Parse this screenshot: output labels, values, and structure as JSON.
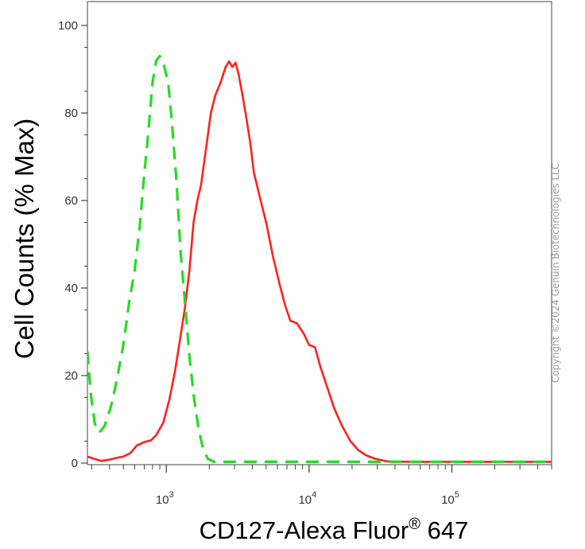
{
  "chart_data": {
    "type": "line",
    "xlabel_main": "CD127-Alexa Fluor",
    "xlabel_sup": "®",
    "xlabel_tail": " 647",
    "ylabel": "Cell Counts (% Max)",
    "x_scale": "log",
    "xlim": [
      280,
      500000
    ],
    "ylim": [
      0,
      100
    ],
    "y_ticks": [
      0,
      20,
      40,
      60,
      80,
      100
    ],
    "x_ticks": [
      {
        "value": 1000,
        "base": "10",
        "exp": "3"
      },
      {
        "value": 10000,
        "base": "10",
        "exp": "4"
      },
      {
        "value": 100000,
        "base": "10",
        "exp": "5"
      }
    ],
    "grid": false,
    "legend": "none",
    "series": [
      {
        "color": "#ff2020",
        "style": "solid",
        "points": [
          [
            280,
            1.5
          ],
          [
            310,
            1.0
          ],
          [
            350,
            0.5
          ],
          [
            400,
            0.8
          ],
          [
            450,
            1.2
          ],
          [
            500,
            1.5
          ],
          [
            560,
            2.3
          ],
          [
            620,
            4.0
          ],
          [
            700,
            4.8
          ],
          [
            780,
            5.2
          ],
          [
            850,
            6.4
          ],
          [
            950,
            9.2
          ],
          [
            1050,
            14.5
          ],
          [
            1150,
            21.0
          ],
          [
            1250,
            28.5
          ],
          [
            1350,
            35.5
          ],
          [
            1450,
            44.0
          ],
          [
            1550,
            55.0
          ],
          [
            1650,
            60.0
          ],
          [
            1750,
            63.5
          ],
          [
            1900,
            72.0
          ],
          [
            2050,
            80.0
          ],
          [
            2200,
            84.0
          ],
          [
            2400,
            87.0
          ],
          [
            2600,
            90.5
          ],
          [
            2750,
            91.8
          ],
          [
            2900,
            90.5
          ],
          [
            3050,
            91.5
          ],
          [
            3200,
            89.0
          ],
          [
            3400,
            84.5
          ],
          [
            3650,
            78.5
          ],
          [
            3900,
            72.5
          ],
          [
            4100,
            66.5
          ],
          [
            4500,
            61.0
          ],
          [
            5000,
            55.0
          ],
          [
            5600,
            47.0
          ],
          [
            6200,
            41.0
          ],
          [
            6800,
            36.0
          ],
          [
            7400,
            32.5
          ],
          [
            8200,
            32.0
          ],
          [
            9200,
            29.5
          ],
          [
            10000,
            27.0
          ],
          [
            11000,
            26.5
          ],
          [
            12000,
            22.0
          ],
          [
            13500,
            17.0
          ],
          [
            15000,
            12.5
          ],
          [
            17000,
            8.5
          ],
          [
            19500,
            5.0
          ],
          [
            22000,
            3.0
          ],
          [
            25000,
            1.8
          ],
          [
            29000,
            1.0
          ],
          [
            35000,
            0.4
          ],
          [
            50000,
            0.3
          ],
          [
            100000,
            0.3
          ],
          [
            200000,
            0.3
          ],
          [
            300000,
            0.3
          ],
          [
            500000,
            0.3
          ]
        ]
      },
      {
        "color": "#22dd22",
        "style": "dashed",
        "points": [
          [
            280,
            25.5
          ],
          [
            295,
            16.0
          ],
          [
            315,
            9.0
          ],
          [
            340,
            7.0
          ],
          [
            370,
            8.5
          ],
          [
            410,
            13.0
          ],
          [
            450,
            19.0
          ],
          [
            500,
            27.0
          ],
          [
            550,
            37.0
          ],
          [
            600,
            44.0
          ],
          [
            650,
            54.0
          ],
          [
            700,
            66.0
          ],
          [
            750,
            76.0
          ],
          [
            800,
            87.0
          ],
          [
            850,
            92.0
          ],
          [
            900,
            93.0
          ],
          [
            960,
            91.0
          ],
          [
            1030,
            87.0
          ],
          [
            1100,
            77.0
          ],
          [
            1180,
            64.0
          ],
          [
            1260,
            48.0
          ],
          [
            1340,
            38.0
          ],
          [
            1450,
            24.5
          ],
          [
            1560,
            15.0
          ],
          [
            1680,
            8.0
          ],
          [
            1800,
            3.5
          ],
          [
            1950,
            1.0
          ],
          [
            2150,
            0.3
          ],
          [
            5000,
            0.3
          ],
          [
            20000,
            0.3
          ],
          [
            100000,
            0.3
          ],
          [
            500000,
            0.3
          ]
        ]
      }
    ]
  },
  "watermark": "Copyright ©2024 Genuin Biotechnologies LLC"
}
